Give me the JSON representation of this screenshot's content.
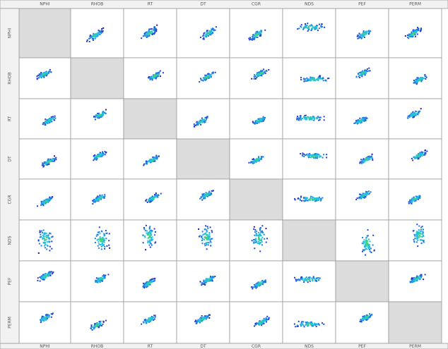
{
  "chart_data": {
    "type": "scatter_matrix",
    "variables": [
      "NPHI",
      "RHOB",
      "RT",
      "DT",
      "CGR",
      "NDS",
      "PEF",
      "PERM"
    ]
  }
}
